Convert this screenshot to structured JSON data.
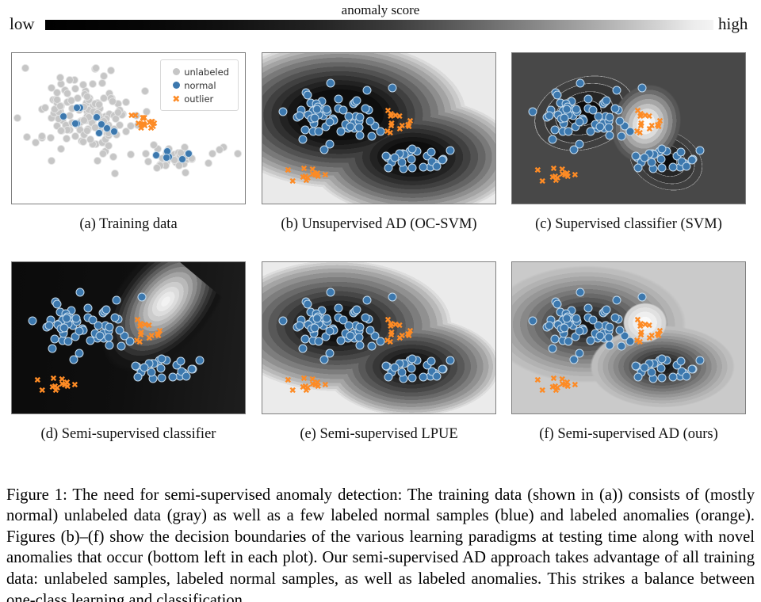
{
  "colorbar": {
    "title": "anomaly score",
    "left_label": "low",
    "right_label": "high",
    "low_color": "#000000",
    "high_color": "#f4f4f4"
  },
  "legend": {
    "items": [
      {
        "label": "unlabeled",
        "marker": "circle",
        "color": "#c6c6c6"
      },
      {
        "label": "normal",
        "marker": "circle",
        "color": "#3c78ae"
      },
      {
        "label": "outlier",
        "marker": "x",
        "color": "#fd8b25"
      }
    ]
  },
  "colors": {
    "unlabeled": "#c6c6c6",
    "unlabeled_edge": "#e3e3e3",
    "normal": "#3c78ae",
    "normal_edge": "rgba(222,236,247,0.85)",
    "outlier": "#fd8b25",
    "panel_border": "#7f7f7f"
  },
  "x_glyph": "✖",
  "panels": [
    {
      "id": "a",
      "caption": "(a) Training data",
      "background": "white-scatter"
    },
    {
      "id": "b",
      "caption": "(b) Unsupervised AD (OC-SVM)",
      "background": "kde-contours-over-both-clusters"
    },
    {
      "id": "c",
      "caption": "(c) Supervised classifier (SVM)",
      "background": "gray-field-dark-cluster-blobs-white-outlier-blob"
    },
    {
      "id": "d",
      "caption": "(d) Semi-supervised classifier",
      "background": "black-field-bright-wedge-top-right"
    },
    {
      "id": "e",
      "caption": "(e) Semi-supervised LPUE",
      "background": "kde-contours-tighter"
    },
    {
      "id": "f",
      "caption": "(f) Semi-supervised AD (ours)",
      "background": "light-field-dark-radial-blobs-white-outlier-blob"
    }
  ],
  "chart_data": {
    "type": "scatter",
    "coordinate_space": "percent of subplot axes; x rightward, y downward",
    "training_data": {
      "shown_in_panel": "a",
      "clusters": [
        {
          "label": "unlabeled",
          "marker": "circle",
          "n": 150,
          "center": [
            30,
            42
          ],
          "std": [
            10.5,
            12.5
          ],
          "seed": 1
        },
        {
          "label": "unlabeled",
          "marker": "circle",
          "n": 42,
          "center": [
            69,
            69
          ],
          "std": [
            7.5,
            5.5
          ],
          "seed": 2
        },
        {
          "label": "normal",
          "marker": "circle",
          "n": 10,
          "center": [
            33,
            46
          ],
          "std": [
            7,
            7
          ],
          "seed": 3
        },
        {
          "label": "normal",
          "marker": "circle",
          "n": 6,
          "center": [
            68,
            68
          ],
          "std": [
            3.5,
            3
          ],
          "seed": 4
        },
        {
          "label": "outlier",
          "marker": "x",
          "n": 17,
          "center": [
            56.5,
            46
          ],
          "std": [
            2.8,
            3.5
          ],
          "seed": 5
        }
      ]
    },
    "test_data": {
      "shown_in_panels": [
        "b",
        "c",
        "d",
        "e",
        "f"
      ],
      "clusters": [
        {
          "label": "normal",
          "marker": "circle",
          "n": 62,
          "center": [
            32,
            43
          ],
          "std": [
            10.5,
            9.5
          ],
          "seed": 11
        },
        {
          "label": "normal",
          "marker": "circle",
          "n": 25,
          "center": [
            64,
            70
          ],
          "std": [
            7,
            4.5
          ],
          "seed": 12
        },
        {
          "label": "outlier",
          "marker": "x",
          "n": 15,
          "center": [
            57,
            45
          ],
          "std": [
            2.5,
            4
          ],
          "seed": 13
        },
        {
          "label": "outlier",
          "marker": "x",
          "n": 11,
          "center": [
            21,
            81
          ],
          "std": [
            2.2,
            2.2
          ],
          "seed": 14
        }
      ],
      "singles": [
        {
          "label": "outlier",
          "marker": "x",
          "points": [
            [
              11,
              78
            ],
            [
              13,
              85
            ],
            [
              27,
              81
            ]
          ]
        }
      ]
    }
  },
  "figure_caption": "Figure 1: The need for semi-supervised anomaly detection: The training data (shown in (a)) consists of (mostly normal) unlabeled data (gray) as well as a few labeled normal samples (blue) and labeled anomalies (orange). Figures (b)–(f) show the decision boundaries of the various learning paradigms at testing time along with novel anomalies that occur (bottom left in each plot). Our semi-supervised AD approach takes advantage of all training data: unlabeled samples, labeled normal samples, as well as labeled anomalies. This strikes a balance between one-class learning and classification."
}
